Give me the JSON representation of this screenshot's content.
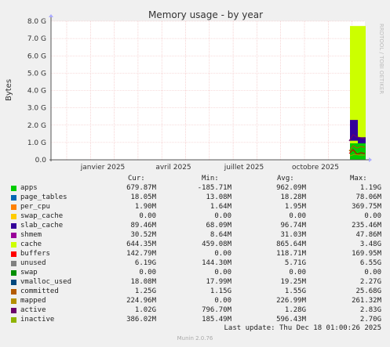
{
  "chart_data": {
    "type": "area",
    "title": "Memory usage - by year",
    "ylabel": "Bytes",
    "watermark": "RRDTOOL / TOBI OETIKER",
    "ylim": [
      0,
      8
    ],
    "yunit": "G",
    "yticks": [
      "0.0",
      "1.0 G",
      "2.0 G",
      "3.0 G",
      "4.0 G",
      "5.0 G",
      "6.0 G",
      "7.0 G",
      "8.0 G"
    ],
    "xticks": [
      "janvier 2025",
      "avril 2025",
      "juillet 2025",
      "octobre 2025"
    ],
    "columns": [
      "Cur:",
      "Min:",
      "Avg:",
      "Max:"
    ],
    "series": [
      {
        "name": "apps",
        "color": "#00cc00",
        "cur": "679.87M",
        "min": "-185.71M",
        "avg": "962.09M",
        "max": "1.19G"
      },
      {
        "name": "page_tables",
        "color": "#0066b3",
        "cur": "18.05M",
        "min": "13.08M",
        "avg": "18.28M",
        "max": "78.06M"
      },
      {
        "name": "per_cpu",
        "color": "#ff8000",
        "cur": "1.90M",
        "min": "1.64M",
        "avg": "1.95M",
        "max": "369.75M"
      },
      {
        "name": "swap_cache",
        "color": "#ffcc00",
        "cur": "0.00",
        "min": "0.00",
        "avg": "0.00",
        "max": "0.00"
      },
      {
        "name": "slab_cache",
        "color": "#330099",
        "cur": "89.46M",
        "min": "68.09M",
        "avg": "96.74M",
        "max": "235.46M"
      },
      {
        "name": "shmem",
        "color": "#990099",
        "cur": "30.52M",
        "min": "8.64M",
        "avg": "31.03M",
        "max": "47.86M"
      },
      {
        "name": "cache",
        "color": "#ccff00",
        "cur": "644.35M",
        "min": "459.08M",
        "avg": "865.64M",
        "max": "3.48G"
      },
      {
        "name": "buffers",
        "color": "#ff0000",
        "cur": "142.79M",
        "min": "0.00",
        "avg": "118.71M",
        "max": "169.95M"
      },
      {
        "name": "unused",
        "color": "#808080",
        "cur": "6.19G",
        "min": "144.30M",
        "avg": "5.71G",
        "max": "6.55G"
      },
      {
        "name": "swap",
        "color": "#008f00",
        "cur": "0.00",
        "min": "0.00",
        "avg": "0.00",
        "max": "0.00"
      },
      {
        "name": "vmalloc_used",
        "color": "#00487d",
        "cur": "18.08M",
        "min": "17.99M",
        "avg": "19.25M",
        "max": "2.27G"
      },
      {
        "name": "committed",
        "color": "#b35a00",
        "cur": "1.25G",
        "min": "1.15G",
        "avg": "1.55G",
        "max": "25.68G"
      },
      {
        "name": "mapped",
        "color": "#b38f00",
        "cur": "224.96M",
        "min": "0.00",
        "avg": "226.99M",
        "max": "261.32M"
      },
      {
        "name": "active",
        "color": "#6b006b",
        "cur": "1.02G",
        "min": "796.70M",
        "avg": "1.28G",
        "max": "2.83G"
      },
      {
        "name": "inactive",
        "color": "#8fb300",
        "cur": "386.02M",
        "min": "185.49M",
        "avg": "596.43M",
        "max": "2.70G"
      }
    ]
  },
  "footer": {
    "last_update": "Last update: Thu Dec 18 01:00:26 2025",
    "version": "Munin 2.0.76"
  },
  "colors": {
    "background": "#f0f0f0",
    "plot_background": "#ffffff",
    "grid": "#e8a0a0"
  }
}
